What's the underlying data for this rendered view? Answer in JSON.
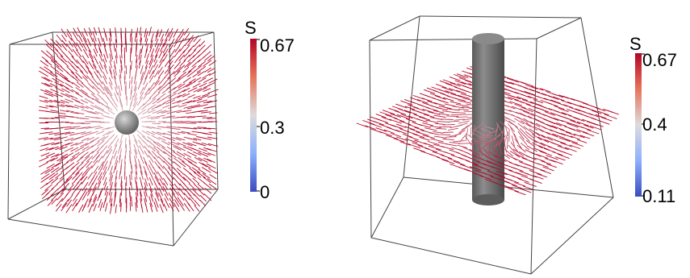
{
  "panels": [
    {
      "id": "left",
      "object": "sphere",
      "colorbar": {
        "label": "S",
        "ticks": [
          "0.67",
          "0.3",
          "0"
        ],
        "tick_values": [
          0.67,
          0.3,
          0
        ],
        "range": [
          0,
          0.67
        ]
      }
    },
    {
      "id": "right",
      "object": "cylinder",
      "colorbar": {
        "label": "S",
        "ticks": [
          "0.67",
          "0.4",
          "0.11"
        ],
        "tick_values": [
          0.67,
          0.4,
          0.11
        ],
        "range": [
          0.11,
          0.67
        ]
      }
    }
  ],
  "colors": {
    "high": "#b40426",
    "mid": "#dddddd",
    "low": "#3b4cc0",
    "box": "#444444",
    "object": "#707070"
  }
}
